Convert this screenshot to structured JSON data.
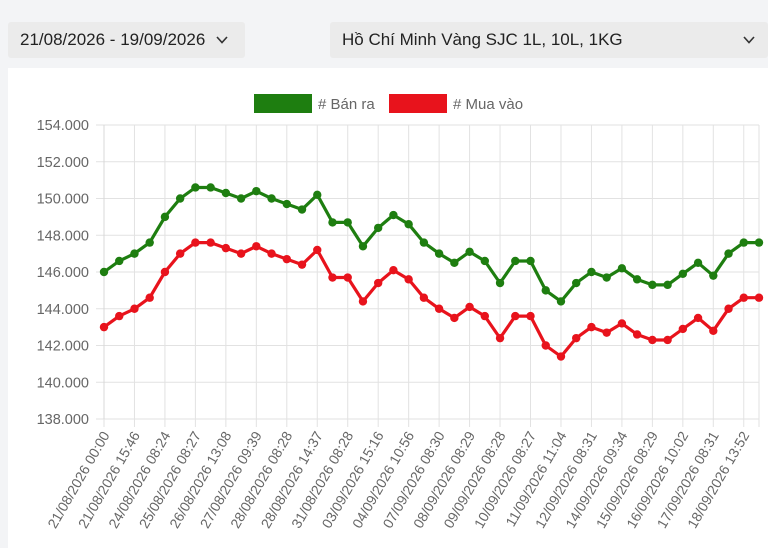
{
  "filters": {
    "date_range": "21/08/2026 - 19/09/2026",
    "product": "Hồ Chí Minh Vàng SJC 1L, 10L, 1KG",
    "chevron_icon": "chevron-down-icon"
  },
  "chart_data": {
    "type": "line",
    "title": "",
    "xlabel": "",
    "ylabel": "",
    "ylim": [
      138000,
      154000
    ],
    "y_ticks": [
      "154.000",
      "152.000",
      "150.000",
      "148.000",
      "146.000",
      "144.000",
      "142.000",
      "140.000",
      "138.000"
    ],
    "y_tick_values": [
      154000,
      152000,
      150000,
      148000,
      146000,
      144000,
      142000,
      140000,
      138000
    ],
    "grid": true,
    "legend_position": "top",
    "x_tick_labels": [
      "21/08/2026 00:00",
      "21/08/2026 15:46",
      "24/08/2026 08:24",
      "25/08/2026 08:27",
      "26/08/2026 13:08",
      "27/08/2026 09:39",
      "28/08/2026 08:28",
      "28/08/2026 14:37",
      "31/08/2026 08:28",
      "03/09/2026 15:16",
      "04/09/2026 10:56",
      "07/09/2026 08:30",
      "08/09/2026 08:29",
      "09/09/2026 08:28",
      "10/09/2026 08:27",
      "11/09/2026 11:04",
      "12/09/2026 08:31",
      "14/09/2026 09:34",
      "15/09/2026 08:29",
      "16/09/2026 10:02",
      "17/09/2026 08:31",
      "18/09/2026 13:52"
    ],
    "series": [
      {
        "name": "# Bán ra",
        "color": "#1e7e10",
        "values": [
          146000,
          146600,
          147000,
          147600,
          149000,
          150000,
          150600,
          150600,
          150300,
          150000,
          150400,
          150000,
          149700,
          149400,
          150200,
          148700,
          148700,
          147400,
          148400,
          149100,
          148600,
          147600,
          147000,
          146500,
          147100,
          146600,
          145400,
          146600,
          146600,
          145000,
          144400,
          145400,
          146000,
          145700,
          146200,
          145600,
          145300,
          145300,
          145900,
          146500,
          145800,
          147000,
          147600,
          147600
        ]
      },
      {
        "name": "# Mua vào",
        "color": "#e8131c",
        "values": [
          143000,
          143600,
          144000,
          144600,
          146000,
          147000,
          147600,
          147600,
          147300,
          147000,
          147400,
          147000,
          146700,
          146400,
          147200,
          145700,
          145700,
          144400,
          145400,
          146100,
          145600,
          144600,
          144000,
          143500,
          144100,
          143600,
          142400,
          143600,
          143600,
          142000,
          141400,
          142400,
          143000,
          142700,
          143200,
          142600,
          142300,
          142300,
          142900,
          143500,
          142800,
          144000,
          144600,
          144600
        ]
      }
    ]
  }
}
